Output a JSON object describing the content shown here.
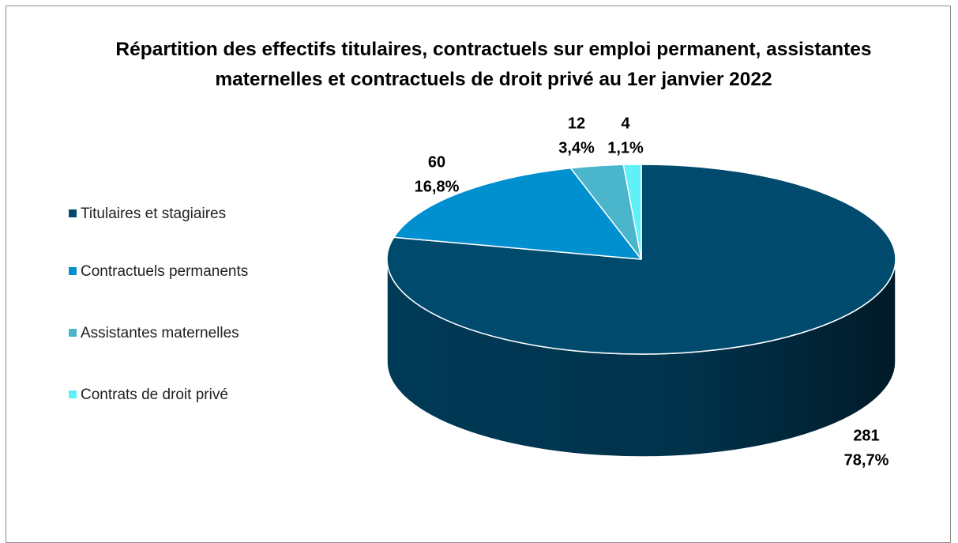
{
  "chart_data": {
    "type": "pie",
    "title": "Répartition des effectifs titulaires, contractuels sur emploi permanent, assistantes maternelles et contractuels de droit privé au 1er janvier 2022",
    "categories": [
      "Titulaires et stagiaires",
      "Contractuels permanents",
      "Assistantes maternelles",
      "Contrats de droit privé"
    ],
    "values": [
      281,
      60,
      12,
      4
    ],
    "percentage_labels": [
      "78,7%",
      "16,8%",
      "3,4%",
      "1,1%"
    ],
    "colors": [
      "#004a6e",
      "#0090d0",
      "#4bb5cc",
      "#5ff0f8"
    ],
    "legend": "left",
    "3d": true
  }
}
